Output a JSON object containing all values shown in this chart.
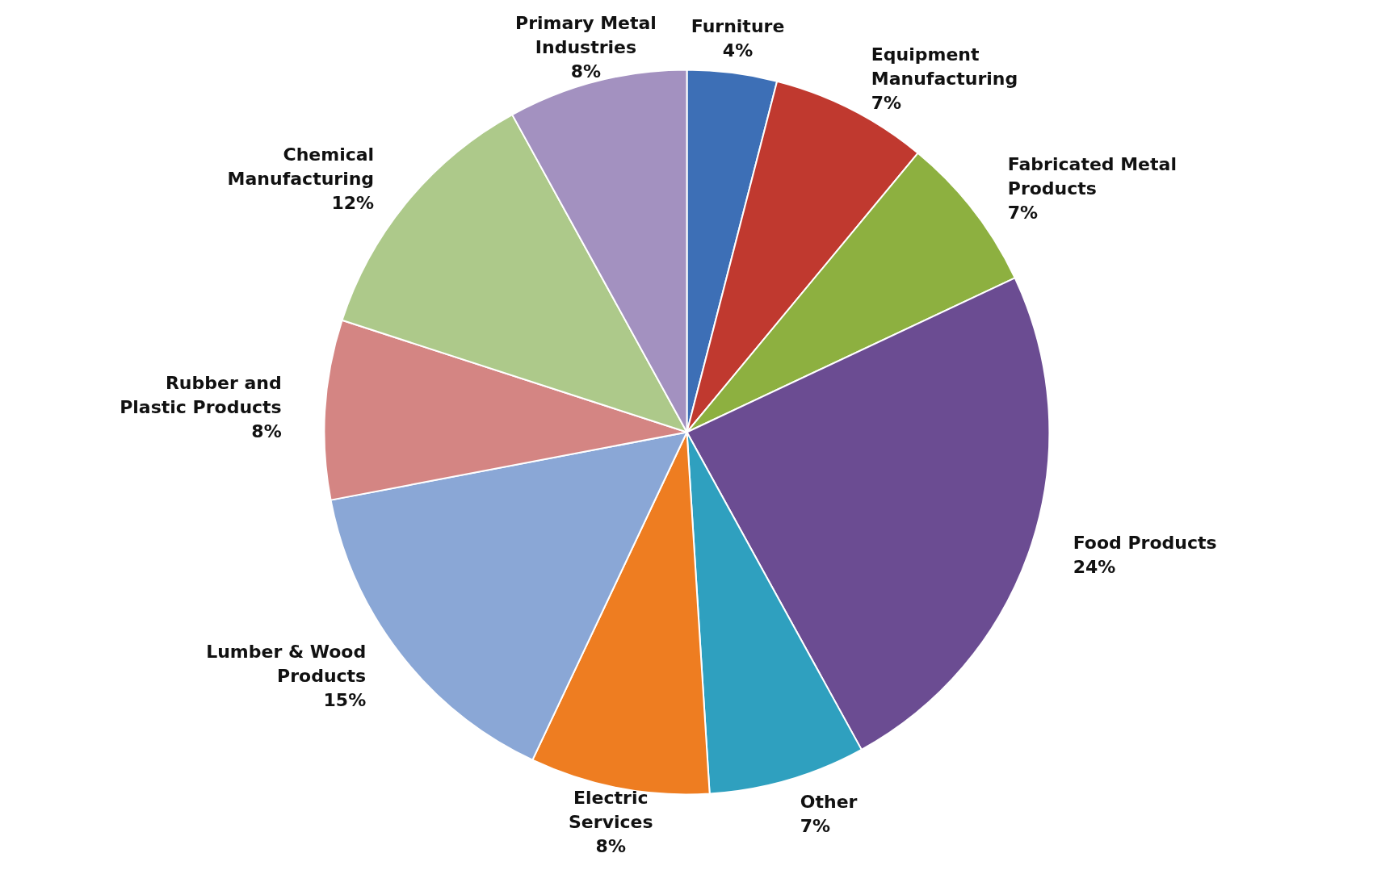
{
  "chart_data": {
    "type": "pie",
    "categories": [
      "Furniture",
      "Equipment Manufacturing",
      "Fabricated Metal Products",
      "Food Products",
      "Other",
      "Electric Services",
      "Lumber & Wood Products",
      "Rubber and Plastic Products",
      "Chemical Manufacturing",
      "Primary Metal Industries"
    ],
    "values": [
      4,
      7,
      7,
      24,
      7,
      8,
      15,
      8,
      12,
      8
    ],
    "value_labels": [
      "4%",
      "7%",
      "7%",
      "24%",
      "7%",
      "8%",
      "15%",
      "8%",
      "12%",
      "8%"
    ],
    "colors": [
      "#3d6fb6",
      "#c0392f",
      "#8db040",
      "#6b4c92",
      "#2fa0bf",
      "#ee7d21",
      "#8aa7d6",
      "#d48583",
      "#adc98a",
      "#a391c0"
    ]
  }
}
